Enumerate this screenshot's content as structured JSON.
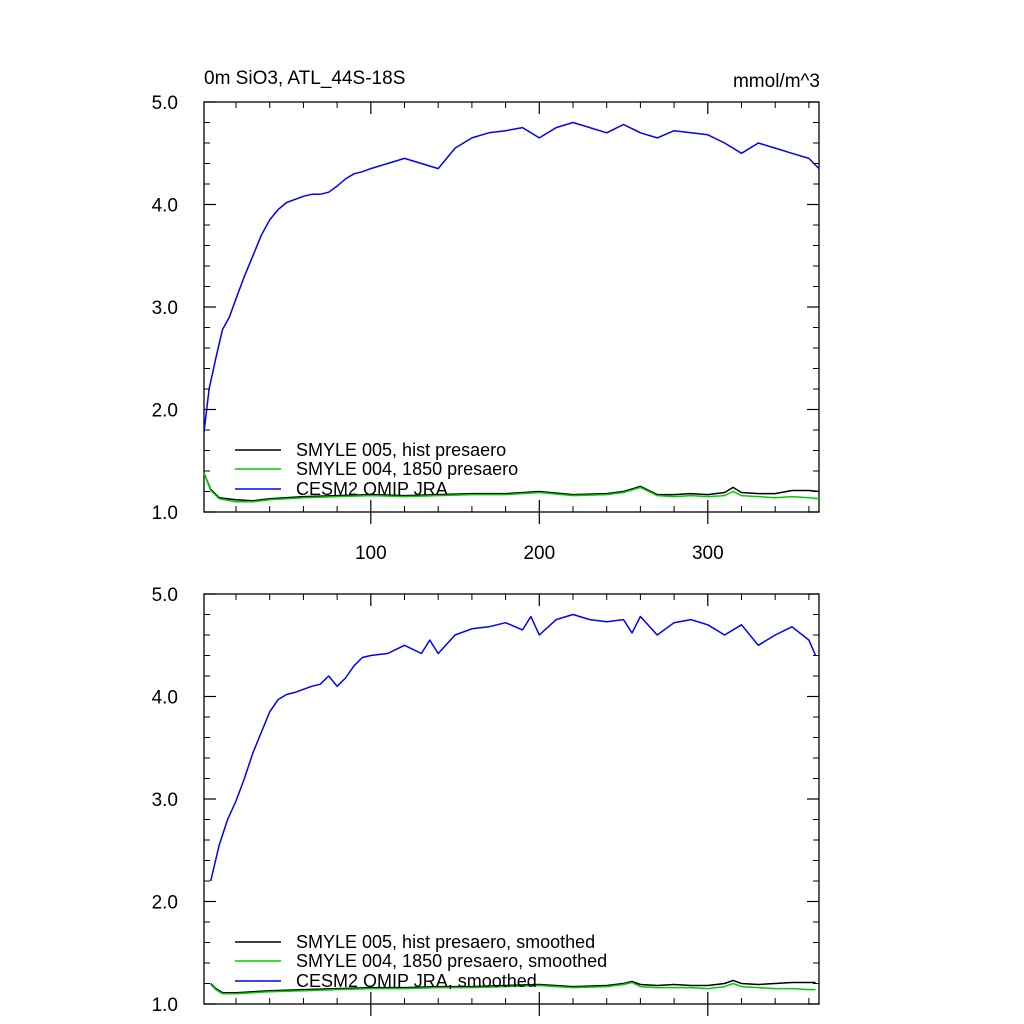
{
  "chart_data": [
    {
      "type": "line",
      "title": "0m SiO3, ATL_44S-18S",
      "units": "mmol/m^3",
      "xlim": [
        1,
        366
      ],
      "ylim": [
        1.0,
        5.0
      ],
      "xticks": [
        100,
        200,
        300
      ],
      "xtick_labels": [
        "100",
        "200",
        "300"
      ],
      "yticks": [
        1.0,
        2.0,
        3.0,
        4.0,
        5.0
      ],
      "ytick_labels": [
        "1.0",
        "2.0",
        "3.0",
        "4.0",
        "5.0"
      ],
      "grid": false,
      "legend_position": "bottom-left",
      "series": [
        {
          "name": "SMYLE 005, hist presaero",
          "color": "#000000",
          "x": [
            1,
            5,
            10,
            20,
            30,
            40,
            60,
            80,
            100,
            120,
            140,
            160,
            180,
            200,
            220,
            240,
            250,
            260,
            270,
            280,
            290,
            300,
            310,
            315,
            320,
            330,
            340,
            350,
            360,
            366
          ],
          "y": [
            1.38,
            1.22,
            1.14,
            1.12,
            1.11,
            1.13,
            1.15,
            1.16,
            1.17,
            1.16,
            1.17,
            1.18,
            1.18,
            1.2,
            1.17,
            1.18,
            1.2,
            1.25,
            1.17,
            1.17,
            1.18,
            1.17,
            1.19,
            1.24,
            1.19,
            1.18,
            1.18,
            1.21,
            1.21,
            1.2
          ]
        },
        {
          "name": "SMYLE 004, 1850 presaero",
          "color": "#00cc00",
          "x": [
            1,
            5,
            10,
            20,
            30,
            40,
            60,
            80,
            100,
            120,
            140,
            160,
            180,
            200,
            220,
            240,
            250,
            260,
            270,
            280,
            290,
            300,
            310,
            315,
            320,
            330,
            340,
            350,
            360,
            366
          ],
          "y": [
            1.38,
            1.21,
            1.13,
            1.1,
            1.1,
            1.12,
            1.14,
            1.15,
            1.16,
            1.15,
            1.16,
            1.17,
            1.17,
            1.19,
            1.16,
            1.17,
            1.19,
            1.24,
            1.16,
            1.15,
            1.16,
            1.15,
            1.16,
            1.2,
            1.16,
            1.15,
            1.14,
            1.15,
            1.14,
            1.13
          ]
        },
        {
          "name": "CESM2 OMIP JRA",
          "color": "#0000ff",
          "x": [
            1,
            4,
            8,
            12,
            16,
            20,
            25,
            30,
            35,
            40,
            45,
            50,
            55,
            60,
            65,
            70,
            75,
            80,
            85,
            90,
            95,
            100,
            110,
            120,
            130,
            140,
            150,
            160,
            170,
            180,
            190,
            200,
            210,
            220,
            230,
            240,
            250,
            260,
            270,
            280,
            290,
            300,
            310,
            320,
            330,
            340,
            350,
            360,
            366
          ],
          "y": [
            1.78,
            2.2,
            2.5,
            2.78,
            2.9,
            3.08,
            3.3,
            3.5,
            3.7,
            3.85,
            3.95,
            4.02,
            4.05,
            4.08,
            4.1,
            4.1,
            4.12,
            4.18,
            4.25,
            4.3,
            4.32,
            4.35,
            4.4,
            4.45,
            4.4,
            4.35,
            4.55,
            4.65,
            4.7,
            4.72,
            4.75,
            4.65,
            4.75,
            4.8,
            4.75,
            4.7,
            4.78,
            4.7,
            4.65,
            4.72,
            4.7,
            4.68,
            4.6,
            4.5,
            4.6,
            4.55,
            4.5,
            4.45,
            4.35
          ]
        }
      ]
    },
    {
      "type": "line",
      "title": "",
      "units": "",
      "xlim": [
        1,
        366
      ],
      "ylim": [
        1.0,
        5.0
      ],
      "xticks": [
        100,
        200,
        300
      ],
      "xtick_labels": [],
      "yticks": [
        1.0,
        2.0,
        3.0,
        4.0,
        5.0
      ],
      "ytick_labels": [
        "1.0",
        "2.0",
        "3.0",
        "4.0",
        "5.0"
      ],
      "grid": false,
      "legend_position": "bottom-left",
      "series": [
        {
          "name": "SMYLE 005, hist presaero, smoothed",
          "color": "#000000",
          "x": [
            5,
            8,
            12,
            20,
            30,
            40,
            60,
            80,
            100,
            120,
            140,
            160,
            180,
            200,
            220,
            240,
            250,
            255,
            260,
            270,
            280,
            290,
            300,
            310,
            315,
            320,
            330,
            340,
            350,
            360,
            364
          ],
          "y": [
            1.2,
            1.15,
            1.11,
            1.11,
            1.12,
            1.13,
            1.14,
            1.15,
            1.16,
            1.16,
            1.17,
            1.17,
            1.18,
            1.19,
            1.17,
            1.18,
            1.2,
            1.22,
            1.19,
            1.18,
            1.19,
            1.18,
            1.18,
            1.2,
            1.23,
            1.2,
            1.19,
            1.2,
            1.21,
            1.21,
            1.21
          ]
        },
        {
          "name": "SMYLE 004, 1850 presaero, smoothed",
          "color": "#00cc00",
          "x": [
            5,
            8,
            12,
            20,
            30,
            40,
            60,
            80,
            100,
            120,
            140,
            160,
            180,
            200,
            220,
            240,
            250,
            255,
            260,
            270,
            280,
            290,
            300,
            310,
            315,
            320,
            330,
            340,
            350,
            360,
            364
          ],
          "y": [
            1.19,
            1.14,
            1.1,
            1.1,
            1.11,
            1.12,
            1.13,
            1.14,
            1.15,
            1.15,
            1.16,
            1.16,
            1.17,
            1.18,
            1.16,
            1.17,
            1.19,
            1.21,
            1.17,
            1.16,
            1.16,
            1.16,
            1.15,
            1.17,
            1.2,
            1.17,
            1.16,
            1.15,
            1.15,
            1.14,
            1.14
          ]
        },
        {
          "name": "CESM2 OMIP JRA, smoothed",
          "color": "#0000ff",
          "x": [
            5,
            10,
            15,
            20,
            25,
            30,
            35,
            40,
            45,
            50,
            55,
            60,
            65,
            70,
            75,
            80,
            85,
            90,
            95,
            100,
            110,
            120,
            130,
            135,
            140,
            150,
            160,
            170,
            180,
            190,
            195,
            200,
            210,
            220,
            230,
            240,
            250,
            255,
            260,
            270,
            280,
            290,
            300,
            310,
            320,
            330,
            340,
            350,
            360,
            364
          ],
          "y": [
            2.2,
            2.55,
            2.8,
            2.98,
            3.2,
            3.45,
            3.65,
            3.85,
            3.97,
            4.02,
            4.04,
            4.07,
            4.1,
            4.12,
            4.2,
            4.1,
            4.18,
            4.3,
            4.38,
            4.4,
            4.42,
            4.5,
            4.42,
            4.55,
            4.42,
            4.6,
            4.66,
            4.68,
            4.72,
            4.65,
            4.78,
            4.6,
            4.75,
            4.8,
            4.75,
            4.73,
            4.75,
            4.62,
            4.78,
            4.6,
            4.72,
            4.75,
            4.7,
            4.6,
            4.7,
            4.5,
            4.6,
            4.68,
            4.55,
            4.4
          ]
        }
      ]
    }
  ]
}
